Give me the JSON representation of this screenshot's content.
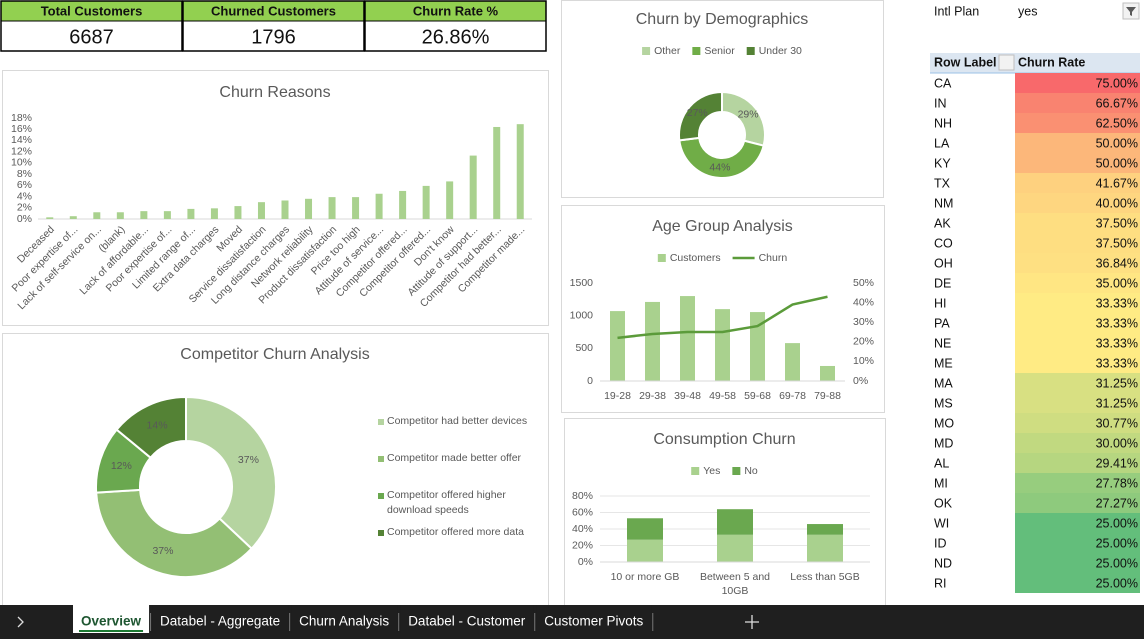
{
  "kpis": [
    {
      "label": "Total Customers",
      "value": 6687
    },
    {
      "label": "Churned Customers",
      "value": 1796
    },
    {
      "label": "Churn Rate %",
      "value": "26.86%"
    }
  ],
  "chart_data": [
    {
      "type": "bar",
      "title": "Churn Reasons",
      "categories": [
        "Deceased",
        "Poor expertise of...",
        "Lack of self-service on...",
        "(blank)",
        "Lack of affordable...",
        "Poor expertise of...",
        "Limited range of...",
        "Extra data charges",
        "Moved",
        "Service dissatisfaction",
        "Long distance charges",
        "Network reliability",
        "Product dissatisfaction",
        "Price too high",
        "Attitude of service...",
        "Competitor offered...",
        "Competitor offered...",
        "Don't know",
        "Attitude of support...",
        "Competitor had better...",
        "Competitor made..."
      ],
      "values": [
        0.3,
        0.5,
        1.2,
        1.2,
        1.4,
        1.4,
        1.8,
        1.9,
        2.3,
        3.0,
        3.3,
        3.6,
        3.9,
        3.9,
        4.5,
        5.0,
        5.9,
        6.7,
        11.3,
        16.4,
        16.9
      ],
      "color": "#a9d18e",
      "ylim": [
        0,
        18
      ],
      "yticks": [
        {
          "value": 0,
          "label": "0%"
        },
        {
          "value": 2,
          "label": "2%"
        },
        {
          "value": 4,
          "label": "4%"
        },
        {
          "value": 6,
          "label": "6%"
        },
        {
          "value": 8,
          "label": "8%"
        },
        {
          "value": 10,
          "label": "10%"
        },
        {
          "value": 12,
          "label": "12%"
        },
        {
          "value": 14,
          "label": "14%"
        },
        {
          "value": 16,
          "label": "16%"
        },
        {
          "value": 18,
          "label": "18%"
        }
      ],
      "grid": false
    },
    {
      "type": "doughnut",
      "title": "Competitor Churn Analysis",
      "categories": [
        "Competitor had better devices",
        "Competitor made better offer",
        "Competitor offered higher download speeds",
        "Competitor offered more data"
      ],
      "values": [
        37,
        37,
        12,
        14
      ],
      "value_labels": [
        "37%",
        "37%",
        "12%",
        "14%"
      ],
      "colors": [
        "#b5d4a0",
        "#93bf74",
        "#6aa84f",
        "#548235"
      ],
      "legend": "right"
    },
    {
      "type": "doughnut",
      "title": "Churn by Demographics",
      "categories": [
        "Other",
        "Senior",
        "Under 30"
      ],
      "values": [
        29,
        44,
        27
      ],
      "value_labels": [
        "29%",
        "44%",
        "27%"
      ],
      "colors": [
        "#b5d4a0",
        "#70ad47",
        "#548235"
      ],
      "legend": "top"
    },
    {
      "type": "combo",
      "title": "Age Group Analysis",
      "categories": [
        "19-28",
        "29-38",
        "39-48",
        "49-58",
        "59-68",
        "69-78",
        "79-88"
      ],
      "series": [
        {
          "name": "Customers",
          "type": "bar",
          "color": "#a9d18e",
          "values": [
            1070,
            1210,
            1300,
            1100,
            1055,
            580,
            230
          ]
        },
        {
          "name": "Churn",
          "type": "line",
          "axis": "y2",
          "color": "#5b9b3a",
          "values": [
            22,
            24,
            25,
            25,
            28,
            39,
            43
          ]
        }
      ],
      "ylim": [
        0,
        1500
      ],
      "yticks": [
        0,
        500,
        1000,
        1500
      ],
      "y2lim": [
        0,
        50
      ],
      "y2ticks": [
        {
          "value": 0,
          "label": "0%"
        },
        {
          "value": 10,
          "label": "10%"
        },
        {
          "value": 20,
          "label": "20%"
        },
        {
          "value": 30,
          "label": "30%"
        },
        {
          "value": 40,
          "label": "40%"
        },
        {
          "value": 50,
          "label": "50%"
        }
      ],
      "grid": false,
      "legend": "top"
    },
    {
      "type": "stacked",
      "title": "Consumption Churn",
      "categories": [
        "10 or more GB",
        "Between 5 and 10GB",
        "Less than 5GB"
      ],
      "series": [
        {
          "name": "Yes",
          "color": "#a9d18e",
          "values": [
            27,
            33,
            33
          ]
        },
        {
          "name": "No",
          "color": "#6aa84f",
          "values": [
            26,
            31,
            13
          ]
        }
      ],
      "ylim": [
        0,
        80
      ],
      "yticks": [
        {
          "value": 0,
          "label": "0%"
        },
        {
          "value": 20,
          "label": "20%"
        },
        {
          "value": 40,
          "label": "40%"
        },
        {
          "value": 60,
          "label": "60%"
        },
        {
          "value": 80,
          "label": "80%"
        }
      ],
      "grid": true,
      "legend": "top"
    }
  ],
  "pivot": {
    "filter": {
      "label": "Intl Plan",
      "value": "yes"
    },
    "headers": [
      "Row Label",
      "Churn Rate"
    ],
    "rows": [
      {
        "label": "CA",
        "value": 75.0,
        "value_label": "75.00%"
      },
      {
        "label": "IN",
        "value": 66.67,
        "value_label": "66.67%"
      },
      {
        "label": "NH",
        "value": 62.5,
        "value_label": "62.50%"
      },
      {
        "label": "LA",
        "value": 50.0,
        "value_label": "50.00%"
      },
      {
        "label": "KY",
        "value": 50.0,
        "value_label": "50.00%"
      },
      {
        "label": "TX",
        "value": 41.67,
        "value_label": "41.67%"
      },
      {
        "label": "NM",
        "value": 40.0,
        "value_label": "40.00%"
      },
      {
        "label": "AK",
        "value": 37.5,
        "value_label": "37.50%"
      },
      {
        "label": "CO",
        "value": 37.5,
        "value_label": "37.50%"
      },
      {
        "label": "OH",
        "value": 36.84,
        "value_label": "36.84%"
      },
      {
        "label": "DE",
        "value": 35.0,
        "value_label": "35.00%"
      },
      {
        "label": "HI",
        "value": 33.33,
        "value_label": "33.33%"
      },
      {
        "label": "PA",
        "value": 33.33,
        "value_label": "33.33%"
      },
      {
        "label": "NE",
        "value": 33.33,
        "value_label": "33.33%"
      },
      {
        "label": "ME",
        "value": 33.33,
        "value_label": "33.33%"
      },
      {
        "label": "MA",
        "value": 31.25,
        "value_label": "31.25%"
      },
      {
        "label": "MS",
        "value": 31.25,
        "value_label": "31.25%"
      },
      {
        "label": "MO",
        "value": 30.77,
        "value_label": "30.77%"
      },
      {
        "label": "MD",
        "value": 30.0,
        "value_label": "30.00%"
      },
      {
        "label": "AL",
        "value": 29.41,
        "value_label": "29.41%"
      },
      {
        "label": "MI",
        "value": 27.78,
        "value_label": "27.78%"
      },
      {
        "label": "OK",
        "value": 27.27,
        "value_label": "27.27%"
      },
      {
        "label": "WI",
        "value": 25.0,
        "value_label": "25.00%"
      },
      {
        "label": "ID",
        "value": 25.0,
        "value_label": "25.00%"
      },
      {
        "label": "ND",
        "value": 25.0,
        "value_label": "25.00%"
      },
      {
        "label": "RI",
        "value": 25.0,
        "value_label": "25.00%"
      }
    ]
  },
  "tabs": [
    "Overview",
    "Databel - Aggregate",
    "Churn Analysis",
    "Databel - Customer",
    "Customer Pivots"
  ]
}
